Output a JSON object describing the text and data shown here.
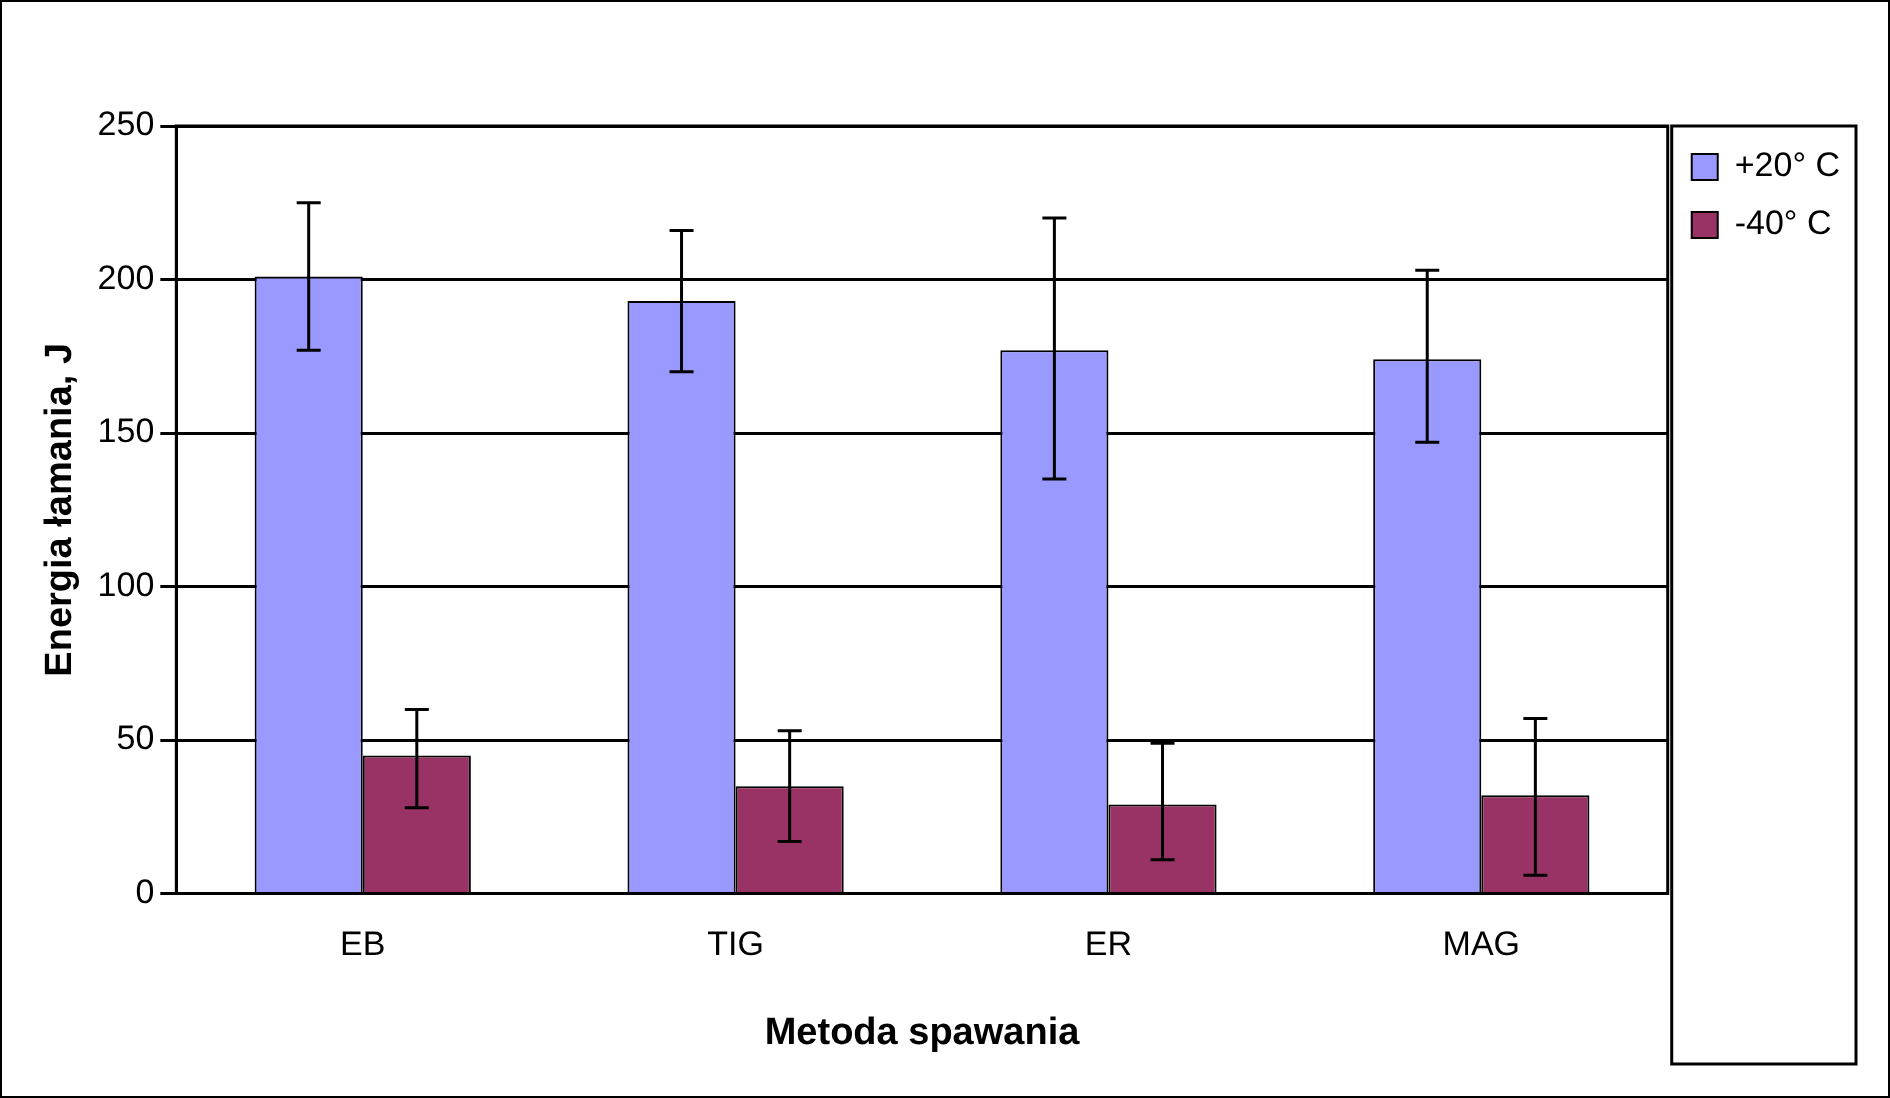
{
  "chart_data": {
    "type": "bar",
    "xlabel": "Metoda spawania",
    "ylabel": "Energia łamania, J",
    "categories": [
      "EB",
      "TIG",
      "ER",
      "MAG"
    ],
    "series": [
      {
        "name": "+20° C",
        "color": "#9999ff",
        "values": [
          201,
          193,
          177,
          174
        ],
        "errors": [
          [
            177,
            225
          ],
          [
            170,
            216
          ],
          [
            135,
            220
          ],
          [
            147,
            203
          ]
        ]
      },
      {
        "name": "-40° C",
        "color": "#993366",
        "values": [
          45,
          35,
          29,
          32
        ],
        "errors": [
          [
            28,
            60
          ],
          [
            17,
            53
          ],
          [
            11,
            49
          ],
          [
            6,
            57
          ]
        ]
      }
    ],
    "ylim": [
      0,
      250
    ],
    "yticks": [
      0,
      50,
      100,
      150,
      200,
      250
    ],
    "grid": "y",
    "legend": "right"
  }
}
